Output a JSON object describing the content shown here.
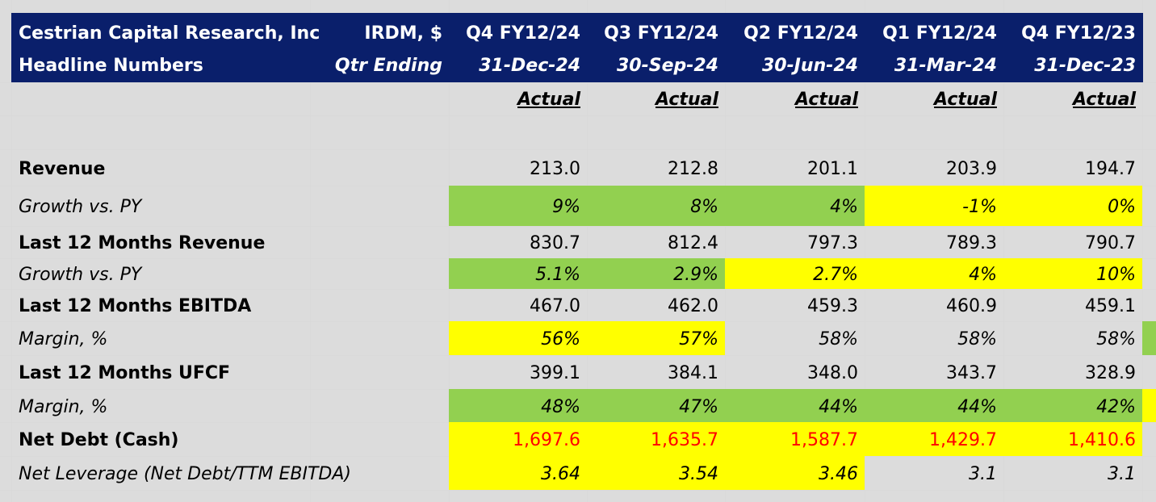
{
  "header": {
    "company": "Cestrian Capital Research, Inc",
    "subtitle": "Headline Numbers",
    "ticker": "IRDM, $",
    "period_label": "Qtr Ending",
    "quarters": [
      "Q4 FY12/24",
      "Q3 FY12/24",
      "Q2 FY12/24",
      "Q1 FY12/24",
      "Q4 FY12/23"
    ],
    "dates": [
      "31-Dec-24",
      "30-Sep-24",
      "30-Jun-24",
      "31-Mar-24",
      "31-Dec-23"
    ],
    "status": [
      "Actual",
      "Actual",
      "Actual",
      "Actual",
      "Actual"
    ]
  },
  "rows": [
    {
      "label": "Revenue",
      "values": [
        "213.0",
        "212.8",
        "201.1",
        "203.9",
        "194.7"
      ],
      "fills": [
        "",
        "",
        "",
        "",
        ""
      ]
    },
    {
      "label": "Growth vs. PY",
      "values": [
        "9%",
        "8%",
        "4%",
        "-1%",
        "0%"
      ],
      "fills": [
        "#92d050",
        "#92d050",
        "#92d050",
        "#ffff00",
        "#ffff00"
      ]
    },
    {
      "label": "Last 12 Months Revenue",
      "values": [
        "830.7",
        "812.4",
        "797.3",
        "789.3",
        "790.7"
      ],
      "fills": [
        "",
        "",
        "",
        "",
        ""
      ]
    },
    {
      "label": "Growth vs. PY",
      "values": [
        "5.1%",
        "2.9%",
        "2.7%",
        "4%",
        "10%"
      ],
      "fills": [
        "#92d050",
        "#92d050",
        "#ffff00",
        "#ffff00",
        "#ffff00"
      ]
    },
    {
      "label": "Last 12 Months EBITDA",
      "values": [
        "467.0",
        "462.0",
        "459.3",
        "460.9",
        "459.1"
      ],
      "fills": [
        "",
        "",
        "",
        "",
        ""
      ]
    },
    {
      "label": "Margin, %",
      "values": [
        "56%",
        "57%",
        "58%",
        "58%",
        "58%"
      ],
      "fills": [
        "#ffff00",
        "#ffff00",
        "",
        "",
        ""
      ]
    },
    {
      "label": "Last 12 Months UFCF",
      "values": [
        "399.1",
        "384.1",
        "348.0",
        "343.7",
        "328.9"
      ],
      "fills": [
        "",
        "",
        "",
        "",
        ""
      ]
    },
    {
      "label": "Margin, %",
      "values": [
        "48%",
        "47%",
        "44%",
        "44%",
        "42%"
      ],
      "fills": [
        "#92d050",
        "#92d050",
        "#92d050",
        "#92d050",
        "#92d050"
      ]
    },
    {
      "label": "Net Debt (Cash)",
      "values": [
        "1,697.6",
        "1,635.7",
        "1,587.7",
        "1,429.7",
        "1,410.6"
      ],
      "fills": [
        "#ffff00",
        "#ffff00",
        "#ffff00",
        "#ffff00",
        "#ffff00"
      ]
    },
    {
      "label": "Net Leverage (Net Debt/TTM EBITDA)",
      "values": [
        "3.64",
        "3.54",
        "3.46",
        "3.1",
        "3.1"
      ],
      "fills": [
        "#ffff00",
        "#ffff00",
        "#ffff00",
        "",
        ""
      ]
    }
  ],
  "colors": {
    "header_bg": "#0a1f6b",
    "green": "#92d050",
    "yellow": "#ffff00",
    "negative_text": "#ff0000"
  }
}
